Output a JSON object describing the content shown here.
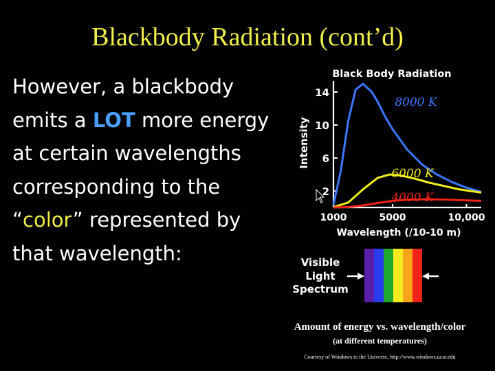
{
  "slide": {
    "title": "Blackbody Radiation (cont’d)",
    "body_part1": "However, a blackbody emits a ",
    "body_lot": "LOT",
    "body_part2": " more energy at certain wavelengths corresponding to the “",
    "body_color": "color",
    "body_part3": "” represented by that wavelength:",
    "caption_main": "Amount of energy vs. wavelength/color",
    "caption_sub": "(at different temperatures)",
    "credit": "Courtesy of Windows to the Universe, http://www.windows.ucar.edu"
  },
  "spectrum": {
    "label_lines": [
      "Visible",
      "Light",
      "Spectrum"
    ],
    "colors": [
      "#5a1ea8",
      "#2a3cf0",
      "#1fa82e",
      "#f4ea1c",
      "#f6a41a",
      "#f02418"
    ]
  },
  "chart_data": {
    "type": "line",
    "title": "Black Body Radiation",
    "xlabel": "Wavelength (/10-10 m)",
    "ylabel": "Intensity",
    "xlim": [
      1000,
      11000
    ],
    "ylim": [
      0,
      15
    ],
    "x_ticks": [
      1000,
      5000,
      10000
    ],
    "x_tick_labels": [
      "1000",
      "5000",
      "10,000"
    ],
    "y_ticks": [
      2,
      6,
      10,
      14
    ],
    "y_tick_labels": [
      "2",
      "6",
      "10",
      "14"
    ],
    "grid": false,
    "legend": "inline labels",
    "series": [
      {
        "name": "8000 K",
        "color": "#3a78ff",
        "x": [
          1000,
          1500,
          2000,
          2500,
          3000,
          3600,
          4000,
          4500,
          5000,
          6000,
          7000,
          8000,
          9000,
          10000,
          11000
        ],
        "y": [
          0.3,
          4.5,
          10.5,
          14.3,
          15.0,
          14.0,
          12.8,
          11.0,
          9.5,
          7.0,
          5.2,
          4.0,
          3.1,
          2.4,
          1.9
        ]
      },
      {
        "name": "6000 K",
        "color": "#f2ef1a",
        "x": [
          1000,
          2000,
          3000,
          4000,
          4800,
          5500,
          6500,
          7500,
          8500,
          9500,
          11000
        ],
        "y": [
          0.05,
          0.6,
          2.2,
          3.6,
          4.0,
          3.9,
          3.5,
          3.0,
          2.6,
          2.2,
          1.8
        ]
      },
      {
        "name": "4000 K",
        "color": "#f02418",
        "x": [
          1000,
          2000,
          3000,
          4000,
          5000,
          6000,
          7250,
          8500,
          9500,
          11000
        ],
        "y": [
          0.0,
          0.05,
          0.25,
          0.55,
          0.8,
          0.95,
          1.0,
          0.97,
          0.9,
          0.8
        ]
      }
    ]
  }
}
